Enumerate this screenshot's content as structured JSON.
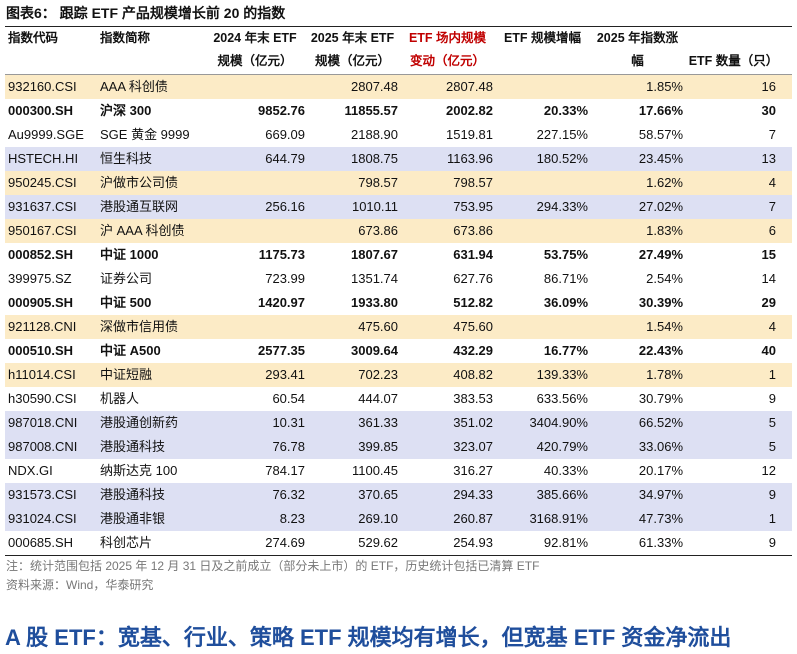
{
  "title": "图表6： 跟踪 ETF 产品规模增长前 20 的指数",
  "table": {
    "header": [
      [
        "指数代码",
        "指数简称",
        "2024 年末 ETF",
        "2025 年末 ETF",
        "ETF 场内规模",
        "ETF 规模增幅",
        "2025 年指数涨",
        null
      ],
      [
        null,
        null,
        "规模（亿元）",
        "规模（亿元）",
        "变动（亿元）",
        null,
        "幅",
        "ETF 数量（只）"
      ]
    ],
    "rows": [
      [
        "932160.CSI",
        "AAA 科创债",
        null,
        "2807.48",
        "2807.48",
        null,
        "1.85%",
        "16"
      ],
      [
        "000300.SH",
        "沪深 300",
        "9852.76",
        "11855.57",
        "2002.82",
        "20.33%",
        "17.66%",
        "30"
      ],
      [
        "Au9999.SGE",
        "SGE 黄金 9999",
        "669.09",
        "2188.90",
        "1519.81",
        "227.15%",
        "58.57%",
        "7"
      ],
      [
        "HSTECH.HI",
        "恒生科技",
        "644.79",
        "1808.75",
        "1163.96",
        "180.52%",
        "23.45%",
        "13"
      ],
      [
        "950245.CSI",
        "沪做市公司债",
        null,
        "798.57",
        "798.57",
        null,
        "1.62%",
        "4"
      ],
      [
        "931637.CSI",
        "港股通互联网",
        "256.16",
        "1010.11",
        "753.95",
        "294.33%",
        "27.02%",
        "7"
      ],
      [
        "950167.CSI",
        "沪 AAA 科创债",
        null,
        "673.86",
        "673.86",
        null,
        "1.83%",
        "6"
      ],
      [
        "000852.SH",
        "中证 1000",
        "1175.73",
        "1807.67",
        "631.94",
        "53.75%",
        "27.49%",
        "15"
      ],
      [
        "399975.SZ",
        "证券公司",
        "723.99",
        "1351.74",
        "627.76",
        "86.71%",
        "2.54%",
        "14"
      ],
      [
        "000905.SH",
        "中证 500",
        "1420.97",
        "1933.80",
        "512.82",
        "36.09%",
        "30.39%",
        "29"
      ],
      [
        "921128.CNI",
        "深做市信用债",
        null,
        "475.60",
        "475.60",
        null,
        "1.54%",
        "4"
      ],
      [
        "000510.SH",
        "中证 A500",
        "2577.35",
        "3009.64",
        "432.29",
        "16.77%",
        "22.43%",
        "40"
      ],
      [
        "h11014.CSI",
        "中证短融",
        "293.41",
        "702.23",
        "408.82",
        "139.33%",
        "1.78%",
        "1"
      ],
      [
        "h30590.CSI",
        "机器人",
        "60.54",
        "444.07",
        "383.53",
        "633.56%",
        "30.79%",
        "9"
      ],
      [
        "987018.CNI",
        "港股通创新药",
        "10.31",
        "361.33",
        "351.02",
        "3404.90%",
        "66.52%",
        "5"
      ],
      [
        "987008.CNI",
        "港股通科技",
        "76.78",
        "399.85",
        "323.07",
        "420.79%",
        "33.06%",
        "5"
      ],
      [
        "NDX.GI",
        "纳斯达克 100",
        "784.17",
        "1100.45",
        "316.27",
        "40.33%",
        "20.17%",
        "12"
      ],
      [
        "931573.CSI",
        "港股通科技",
        "76.32",
        "370.65",
        "294.33",
        "385.66%",
        "34.97%",
        "9"
      ],
      [
        "931024.CSI",
        "港股通非银",
        "8.23",
        "269.10",
        "260.87",
        "3168.91%",
        "47.73%",
        "1"
      ],
      [
        "000685.SH",
        "科创芯片",
        "274.69",
        "529.62",
        "254.93",
        "92.81%",
        "61.33%",
        "9"
      ]
    ]
  },
  "notes": [
    "注：统计范围包括 2025 年 12 月 31 日及之前成立（部分未上市）的 ETF，历史统计包括已清算 ETF",
    "资料来源：Wind，华泰研究"
  ],
  "heading": "A 股 ETF：宽基、行业、策略 ETF 规模均有增长，但宽基 ETF 资金净流出"
}
